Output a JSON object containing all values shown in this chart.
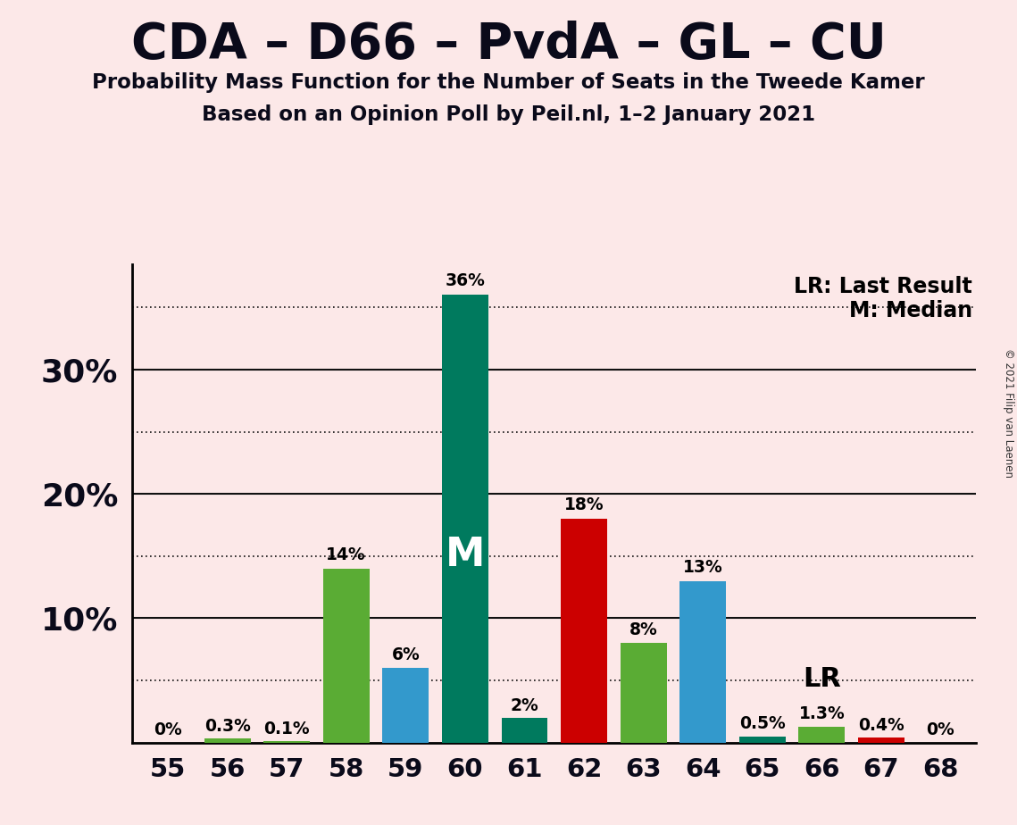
{
  "title": "CDA – D66 – PvdA – GL – CU",
  "subtitle1": "Probability Mass Function for the Number of Seats in the Tweede Kamer",
  "subtitle2": "Based on an Opinion Poll by Peil.nl, 1–2 January 2021",
  "copyright": "© 2021 Filip van Laenen",
  "background_color": "#fce8e8",
  "seats": [
    55,
    56,
    57,
    58,
    59,
    60,
    61,
    62,
    63,
    64,
    65,
    66,
    67,
    68
  ],
  "values": [
    0.0,
    0.3,
    0.1,
    14.0,
    6.0,
    36.0,
    2.0,
    18.0,
    8.0,
    13.0,
    0.5,
    1.3,
    0.4,
    0.0
  ],
  "labels": [
    "0%",
    "0.3%",
    "0.1%",
    "14%",
    "6%",
    "36%",
    "2%",
    "18%",
    "8%",
    "13%",
    "0.5%",
    "1.3%",
    "0.4%",
    "0%"
  ],
  "colors": [
    "#5aac34",
    "#5aac34",
    "#5aac34",
    "#5aac34",
    "#3399cc",
    "#007a5e",
    "#007a5e",
    "#cc0000",
    "#5aac34",
    "#3399cc",
    "#007a5e",
    "#5aac34",
    "#cc0000",
    "#cc0000"
  ],
  "median_seat": 60,
  "lr_seat": 66,
  "ylim_max": 38.5,
  "grid_solid": [
    10,
    20,
    30
  ],
  "grid_dotted": [
    5,
    15,
    25,
    35
  ],
  "annotation_lr": "LR",
  "annotation_median": "M",
  "legend_lr": "LR: Last Result",
  "legend_m": "M: Median",
  "title_color": "#0a0a1a",
  "bar_width": 0.78
}
